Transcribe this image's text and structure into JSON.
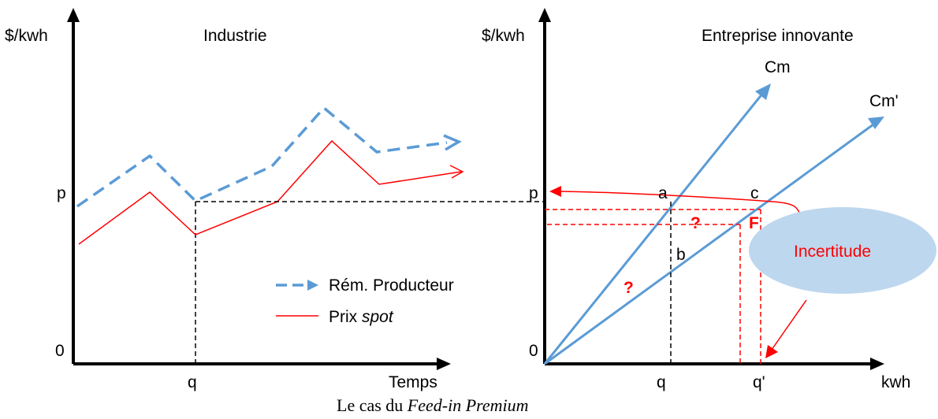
{
  "colors": {
    "remuneration": "#5b9bd5",
    "spot": "#ff0000",
    "axis": "#000000",
    "ellipse_fill": "#bdd7ee"
  },
  "left_panel": {
    "ylabel": "$/kwh",
    "title": "Industrie",
    "xlabel": "Temps",
    "p_label": "p",
    "zero_label": "0",
    "q_label": "q",
    "legend": {
      "rem_label": "Rém. Producteur",
      "spot_prefix": "Prix ",
      "spot_italic": "spot"
    }
  },
  "right_panel": {
    "ylabel": "$/kwh",
    "title": "Entreprise innovante",
    "xlabel": "kwh",
    "p_label": "p",
    "zero_label": "0",
    "q_label": "q",
    "q_prime_label": "q'",
    "cm_label": "Cm",
    "cm_prime_label": "Cm'",
    "point_a": "a",
    "point_b": "b",
    "point_c": "c",
    "point_f": "F",
    "question_1": "?",
    "question_2": "?",
    "uncertainty_label": "Incertitude"
  },
  "caption": {
    "prefix": "Le cas du ",
    "italic": "Feed-in Premium"
  }
}
